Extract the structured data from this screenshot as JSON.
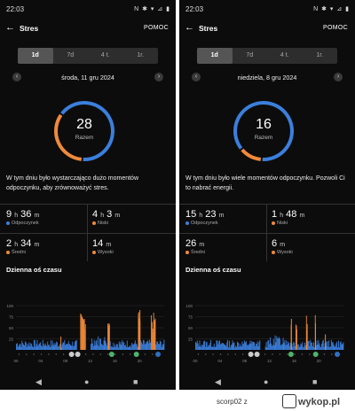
{
  "screens": [
    {
      "status": {
        "time": "22:03",
        "icons": "N ✱ ▾ ⊿ ▮"
      },
      "appbar": {
        "back": "←",
        "title": "Stres",
        "help": "POMOC"
      },
      "tabs": [
        "1d",
        "7d",
        "4 t.",
        "1r."
      ],
      "active_tab": 0,
      "date": {
        "prev": "‹",
        "label": "środa, 11 gru 2024",
        "next": "›"
      },
      "score": {
        "value": "28",
        "label": "Razem",
        "orange_fraction": 0.33
      },
      "message": "W tym dniu było wystarczająco dużo momentów odpoczynku, aby zrównoważyć stres.",
      "stats": [
        {
          "h": "9",
          "hu": "h",
          "m": "36",
          "mu": "m",
          "label": "Odpoczynek",
          "color": "#3b7fdc"
        },
        {
          "h": "4",
          "hu": "h",
          "m": "3",
          "mu": "m",
          "label": "Niski",
          "color": "#f08a3a"
        },
        {
          "h": "2",
          "hu": "h",
          "m": "34",
          "mu": "m",
          "label": "Średni",
          "color": "#f08a3a"
        },
        {
          "h": "",
          "hu": "",
          "m": "14",
          "mu": "m",
          "label": "Wysoki",
          "color": "#f08a3a"
        }
      ],
      "timeline_title": "Dzienna oś czasu",
      "chart": {
        "y_ticks": [
          "100",
          "75",
          "50",
          "25"
        ],
        "x_ticks": [
          "00",
          "04",
          "08",
          "12",
          "16",
          "20"
        ],
        "accent": "#f08a3a",
        "blue": "#3b7fdc",
        "orange_ranges": [
          [
            10.4,
            11.3
          ],
          [
            14.8,
            15.2
          ],
          [
            19.7,
            20.1
          ],
          [
            21.8,
            22.5
          ]
        ],
        "gray_ranges": [
          [
            9.8,
            10.4
          ],
          [
            11.3,
            12.0
          ]
        ],
        "peaks": [
          [
            7.2,
            30
          ],
          [
            10.6,
            75
          ],
          [
            11.0,
            70
          ],
          [
            15.0,
            60
          ],
          [
            19.8,
            85
          ],
          [
            20.0,
            90
          ],
          [
            22.1,
            40
          ]
        ]
      },
      "nav": {
        "back": "◀",
        "home": "●",
        "recent": "■"
      }
    },
    {
      "status": {
        "time": "22:03",
        "icons": "N ✱ ▾ ⊿ ▮"
      },
      "appbar": {
        "back": "←",
        "title": "Stres",
        "help": "POMOC"
      },
      "tabs": [
        "1d",
        "7d",
        "4 t.",
        "1r."
      ],
      "active_tab": 0,
      "date": {
        "prev": "‹",
        "label": "niedziela, 8 gru 2024",
        "next": "›"
      },
      "score": {
        "value": "16",
        "label": "Razem",
        "orange_fraction": 0.12
      },
      "message": "W tym dniu było wiele momentów odpoczynku. Pozwoli Ci to nabrać energii.",
      "stats": [
        {
          "h": "15",
          "hu": "h",
          "m": "23",
          "mu": "m",
          "label": "Odpoczynek",
          "color": "#3b7fdc"
        },
        {
          "h": "1",
          "hu": "h",
          "m": "48",
          "mu": "m",
          "label": "Niski",
          "color": "#f08a3a"
        },
        {
          "h": "",
          "hu": "",
          "m": "26",
          "mu": "m",
          "label": "Średni",
          "color": "#f08a3a"
        },
        {
          "h": "",
          "hu": "",
          "m": "6",
          "mu": "m",
          "label": "Wysoki",
          "color": "#f08a3a"
        }
      ],
      "timeline_title": "Dzienna oś czasu",
      "chart": {
        "y_ticks": [
          "100",
          "75",
          "50",
          "25"
        ],
        "x_ticks": [
          "00",
          "04",
          "08",
          "12",
          "16",
          "20"
        ],
        "accent": "#f08a3a",
        "blue": "#3b7fdc",
        "orange_ranges": [
          [
            15.4,
            15.6
          ],
          [
            16.2,
            16.4
          ],
          [
            17.9,
            18.1
          ],
          [
            19.3,
            19.5
          ]
        ],
        "gray_ranges": [
          [
            10.5,
            11.2
          ]
        ],
        "peaks": [
          [
            15.5,
            70
          ],
          [
            16.3,
            55
          ],
          [
            18.0,
            45
          ],
          [
            19.4,
            60
          ],
          [
            21.0,
            35
          ]
        ]
      },
      "nav": {
        "back": "◀",
        "home": "●",
        "recent": "■"
      }
    }
  ],
  "footer": {
    "user": "scorp02",
    "z": "z",
    "site": "wykop.pl"
  }
}
